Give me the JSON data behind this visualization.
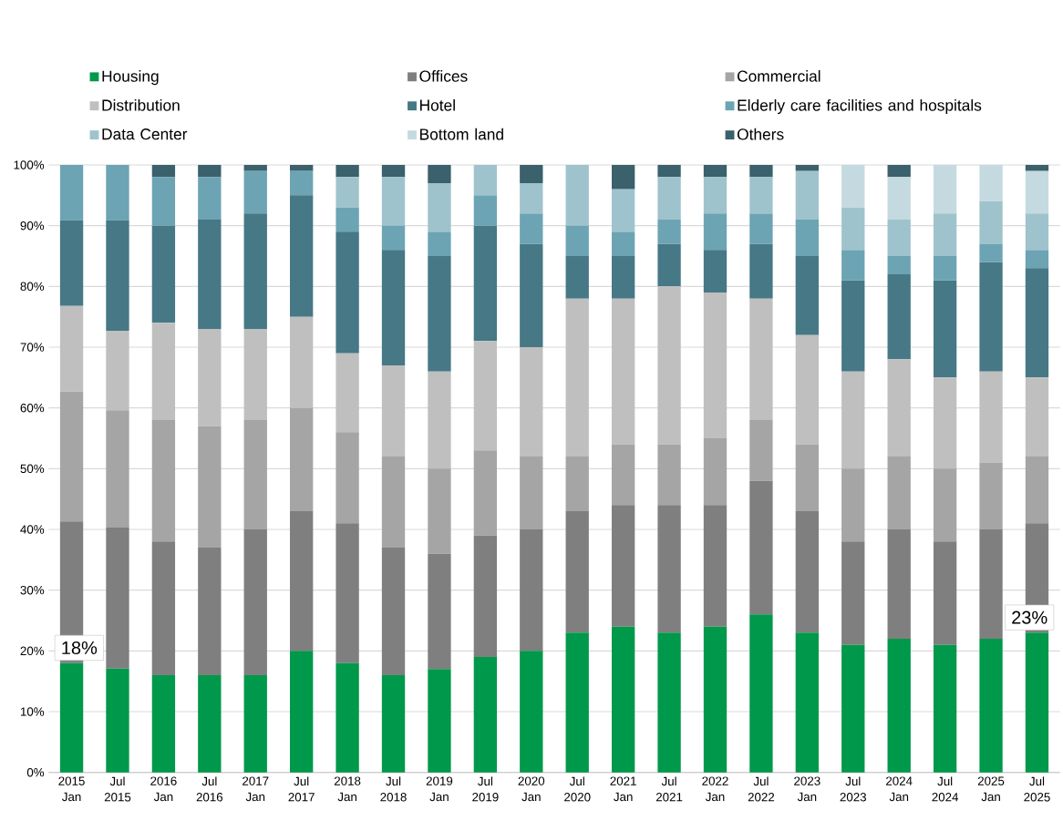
{
  "chart_data": {
    "type": "bar",
    "stacked": true,
    "categories": [
      "2015 Jan",
      "Jul 2015",
      "2016 Jan",
      "Jul 2016",
      "2017 Jan",
      "Jul 2017",
      "2018 Jan",
      "Jul 2018",
      "2019 Jan",
      "Jul 2019",
      "2020 Jan",
      "Jul 2020",
      "2021 Jan",
      "Jul 2021",
      "2022 Jan",
      "Jul 2022",
      "2023 Jan",
      "Jul 2023",
      "2024 Jan",
      "Jul 2024",
      "2025 Jan",
      "Jul 2025"
    ],
    "series": [
      {
        "name": "Housing",
        "color": "#00984a",
        "values": [
          18,
          17.1,
          16,
          16,
          16,
          20,
          18,
          16,
          17,
          19,
          20,
          23,
          24,
          23,
          24,
          26,
          23,
          21,
          22,
          21,
          22,
          23
        ],
        "value_labels": [
          "18%",
          null,
          null,
          null,
          null,
          null,
          null,
          null,
          null,
          null,
          null,
          null,
          null,
          null,
          null,
          null,
          null,
          null,
          null,
          null,
          null,
          "23%"
        ]
      },
      {
        "name": "Offices",
        "color": "#7f7f7f",
        "values": [
          23.3,
          23.2,
          22,
          21,
          24,
          23,
          23,
          21,
          19,
          20,
          20,
          20,
          20,
          21,
          20,
          22,
          20,
          17,
          18,
          17,
          18,
          18
        ]
      },
      {
        "name": "Commercial",
        "color": "#a5a5a5",
        "values": [
          21.4,
          19.3,
          20,
          20,
          18,
          17,
          15,
          15,
          14,
          14,
          12,
          9,
          10,
          10,
          11,
          10,
          11,
          12,
          12,
          12,
          11,
          11
        ]
      },
      {
        "name": "Distribution",
        "color": "#bfbfbf",
        "values": [
          14.1,
          13.1,
          16,
          16,
          15,
          15,
          13,
          15,
          16,
          18,
          18,
          26,
          24,
          26,
          24,
          20,
          18,
          16,
          16,
          15,
          15,
          13
        ]
      },
      {
        "name": "Hotel",
        "color": "#467886",
        "values": [
          14.1,
          18.2,
          16,
          18,
          19,
          20,
          20,
          19,
          19,
          19,
          17,
          7,
          7,
          7,
          7,
          9,
          13,
          15,
          14,
          16,
          18,
          18
        ]
      },
      {
        "name": "Elderly care facilities and hospitals",
        "color": "#6ca4b4",
        "values": [
          9.1,
          9.1,
          8,
          7,
          7,
          4,
          4,
          4,
          4,
          5,
          5,
          5,
          4,
          4,
          6,
          5,
          6,
          5,
          3,
          4,
          3,
          3
        ]
      },
      {
        "name": "Data Center",
        "color": "#9fc3cc",
        "values": [
          0,
          0,
          0,
          0,
          0,
          0,
          5,
          8,
          8,
          5,
          5,
          10,
          7,
          7,
          6,
          6,
          8,
          7,
          6,
          7,
          7,
          6
        ]
      },
      {
        "name": "Bottom land",
        "color": "#c5dae0",
        "values": [
          0,
          0,
          0,
          0,
          0,
          0,
          0,
          0,
          0,
          0,
          0,
          0,
          0,
          0,
          0,
          0,
          0,
          7,
          7,
          8,
          6,
          7
        ]
      },
      {
        "name": "Others",
        "color": "#3a616c",
        "values": [
          0,
          0,
          2,
          2,
          1,
          1,
          2,
          2,
          3,
          0,
          3,
          0,
          4,
          2,
          2,
          2,
          1,
          0,
          2,
          0,
          0,
          1
        ]
      }
    ],
    "ylim": [
      0,
      100
    ],
    "yticks": [
      {
        "value": 0,
        "label": "0%"
      },
      {
        "value": 10,
        "label": "10%"
      },
      {
        "value": 20,
        "label": "20%"
      },
      {
        "value": 30,
        "label": "30%"
      },
      {
        "value": 40,
        "label": "40%"
      },
      {
        "value": 50,
        "label": "50%"
      },
      {
        "value": 60,
        "label": "60%"
      },
      {
        "value": 70,
        "label": "70%"
      },
      {
        "value": 80,
        "label": "80%"
      },
      {
        "value": 90,
        "label": "90%"
      },
      {
        "value": 100,
        "label": "100%"
      }
    ],
    "grid": "y",
    "legend": "top"
  }
}
